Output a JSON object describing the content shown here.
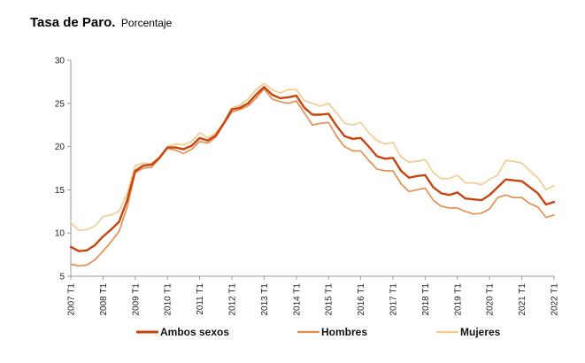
{
  "title": "Tasa de Paro.",
  "subtitle": "Porcentaje",
  "chart_data": {
    "type": "line",
    "title": "Tasa de Paro.",
    "subtitle": "Porcentaje",
    "xlabel": "",
    "ylabel": "",
    "ylim": [
      5,
      30
    ],
    "yticks": [
      5,
      10,
      15,
      20,
      25,
      30
    ],
    "grid": false,
    "legend_position": "bottom",
    "x": [
      "2007 T1",
      "2007 T2",
      "2007 T3",
      "2007 T4",
      "2008 T1",
      "2008 T2",
      "2008 T3",
      "2008 T4",
      "2009 T1",
      "2009 T2",
      "2009 T3",
      "2009 T4",
      "2010 T1",
      "2010 T2",
      "2010 T3",
      "2010 T4",
      "2011 T1",
      "2011 T2",
      "2011 T3",
      "2011 T4",
      "2012 T1",
      "2012 T2",
      "2012 T3",
      "2012 T4",
      "2013 T1",
      "2013 T2",
      "2013 T3",
      "2013 T4",
      "2014 T1",
      "2014 T2",
      "2014 T3",
      "2014 T4",
      "2015 T1",
      "2015 T2",
      "2015 T3",
      "2015 T4",
      "2016 T1",
      "2016 T2",
      "2016 T3",
      "2016 T4",
      "2017 T1",
      "2017 T2",
      "2017 T3",
      "2017 T4",
      "2018 T1",
      "2018 T2",
      "2018 T3",
      "2018 T4",
      "2019 T1",
      "2019 T2",
      "2019 T3",
      "2019 T4",
      "2020 T1",
      "2020 T2",
      "2020 T3",
      "2020 T4",
      "2021 T1",
      "2021 T2",
      "2021 T3",
      "2021 T4",
      "2022 T1"
    ],
    "tick_labels": [
      "2007 T1",
      "2008 T1",
      "2009 T1",
      "2010 T1",
      "2011 T1",
      "2012 T1",
      "2013 T1",
      "2014 T1",
      "2015 T1",
      "2016 T1",
      "2017 T1",
      "2018 T1",
      "2019 T1",
      "2020 T1",
      "2021 T1",
      "2022 T1"
    ],
    "series": [
      {
        "name": "Ambos sexos",
        "color": "#c8440e",
        "width": 2.4,
        "values": [
          8.4,
          7.9,
          8.0,
          8.6,
          9.6,
          10.4,
          11.3,
          13.8,
          17.2,
          17.8,
          17.9,
          18.7,
          19.9,
          19.9,
          19.7,
          20.1,
          21.0,
          20.7,
          21.3,
          22.7,
          24.3,
          24.5,
          25.0,
          26.0,
          26.9,
          26.0,
          25.6,
          25.7,
          25.9,
          24.5,
          23.7,
          23.7,
          23.8,
          22.4,
          21.2,
          20.9,
          21.0,
          20.0,
          18.9,
          18.6,
          18.7,
          17.2,
          16.4,
          16.6,
          16.7,
          15.3,
          14.6,
          14.4,
          14.7,
          14.0,
          13.9,
          13.8,
          14.4,
          15.3,
          16.2,
          16.1,
          16.0,
          15.3,
          14.6,
          13.3,
          13.6
        ]
      },
      {
        "name": "Hombres",
        "color": "#e58b4a",
        "width": 1.6,
        "values": [
          6.4,
          6.2,
          6.3,
          6.9,
          7.9,
          9.0,
          10.2,
          13.0,
          17.0,
          17.5,
          17.6,
          18.6,
          19.8,
          19.6,
          19.2,
          19.7,
          20.6,
          20.4,
          21.1,
          22.6,
          24.0,
          24.3,
          24.7,
          25.6,
          26.7,
          25.5,
          25.2,
          25.0,
          25.3,
          23.9,
          22.5,
          22.7,
          22.8,
          21.2,
          20.0,
          19.5,
          19.5,
          18.4,
          17.4,
          17.2,
          17.2,
          15.7,
          14.8,
          15.0,
          15.2,
          13.8,
          13.1,
          12.9,
          12.9,
          12.5,
          12.2,
          12.3,
          12.8,
          14.1,
          14.4,
          14.1,
          14.1,
          13.4,
          13.0,
          11.8,
          12.1
        ]
      },
      {
        "name": "Mujeres",
        "color": "#f5c98a",
        "width": 1.6,
        "values": [
          11.2,
          10.3,
          10.4,
          10.8,
          11.9,
          12.1,
          12.5,
          14.6,
          17.8,
          18.1,
          18.0,
          18.8,
          20.0,
          20.3,
          20.2,
          20.6,
          21.6,
          21.0,
          21.6,
          22.8,
          24.5,
          24.8,
          25.5,
          26.6,
          27.3,
          26.6,
          26.2,
          26.6,
          26.6,
          25.3,
          25.0,
          24.7,
          25.0,
          23.9,
          22.7,
          22.5,
          22.8,
          21.6,
          20.7,
          20.3,
          20.5,
          18.8,
          18.2,
          18.3,
          18.5,
          17.0,
          16.3,
          16.3,
          16.7,
          15.8,
          15.8,
          15.6,
          16.2,
          16.7,
          18.4,
          18.3,
          18.1,
          17.2,
          16.4,
          15.0,
          15.5
        ]
      }
    ]
  }
}
